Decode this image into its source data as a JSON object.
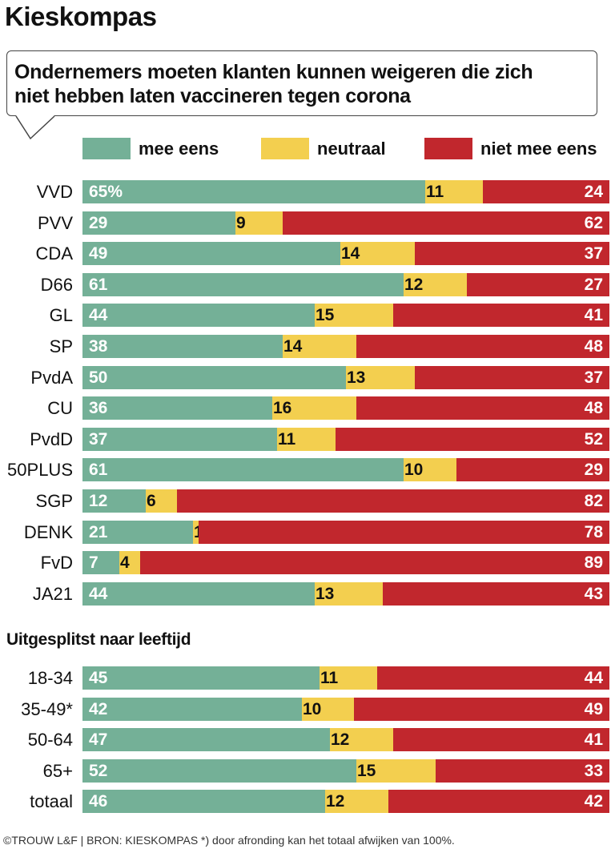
{
  "header": {
    "title": "Kieskompas",
    "question_line1": "Ondernemers moeten klanten kunnen weigeren die zich",
    "question_line2": "niet hebben laten vaccineren tegen corona"
  },
  "colors": {
    "agree": "#74b097",
    "neutral": "#f3cf4f",
    "disagree": "#c1272d"
  },
  "legend": [
    {
      "key": "agree",
      "label": "mee eens"
    },
    {
      "key": "neutral",
      "label": "neutraal"
    },
    {
      "key": "disagree",
      "label": "niet mee eens"
    }
  ],
  "age_section_title": "Uitgesplitst naar leeftijd",
  "footer": "©TROUW L&F | BRON: KIESKOMPAS *) door afronding kan het totaal afwijken van 100%.",
  "chart_data": [
    {
      "type": "bar",
      "orientation": "horizontal-stacked-100",
      "title": "Ondernemers moeten klanten kunnen weigeren die zich niet hebben laten vaccineren tegen corona",
      "unit": "%",
      "first_label_suffix": "%",
      "categories": [
        "VVD",
        "PVV",
        "CDA",
        "D66",
        "GL",
        "SP",
        "PvdA",
        "CU",
        "PvdD",
        "50PLUS",
        "SGP",
        "DENK",
        "FvD",
        "JA21"
      ],
      "series": [
        {
          "name": "mee eens",
          "values": [
            65,
            29,
            49,
            61,
            44,
            38,
            50,
            36,
            37,
            61,
            12,
            21,
            7,
            44
          ]
        },
        {
          "name": "neutraal",
          "values": [
            11,
            9,
            14,
            12,
            15,
            14,
            13,
            16,
            11,
            10,
            6,
            1,
            4,
            13
          ]
        },
        {
          "name": "niet mee eens",
          "values": [
            24,
            62,
            37,
            27,
            41,
            48,
            37,
            48,
            52,
            29,
            82,
            78,
            89,
            43
          ]
        }
      ],
      "xlim": [
        0,
        100
      ],
      "legend": "top"
    },
    {
      "type": "bar",
      "orientation": "horizontal-stacked-100",
      "title": "Uitgesplitst naar leeftijd",
      "unit": "%",
      "categories": [
        "18-34",
        "35-49*",
        "50-64",
        "65+",
        "totaal"
      ],
      "series": [
        {
          "name": "mee eens",
          "values": [
            45,
            42,
            47,
            52,
            46
          ]
        },
        {
          "name": "neutraal",
          "values": [
            11,
            10,
            12,
            15,
            12
          ]
        },
        {
          "name": "niet mee eens",
          "values": [
            44,
            49,
            41,
            33,
            42
          ]
        }
      ],
      "xlim": [
        0,
        100
      ],
      "legend": "top"
    }
  ]
}
